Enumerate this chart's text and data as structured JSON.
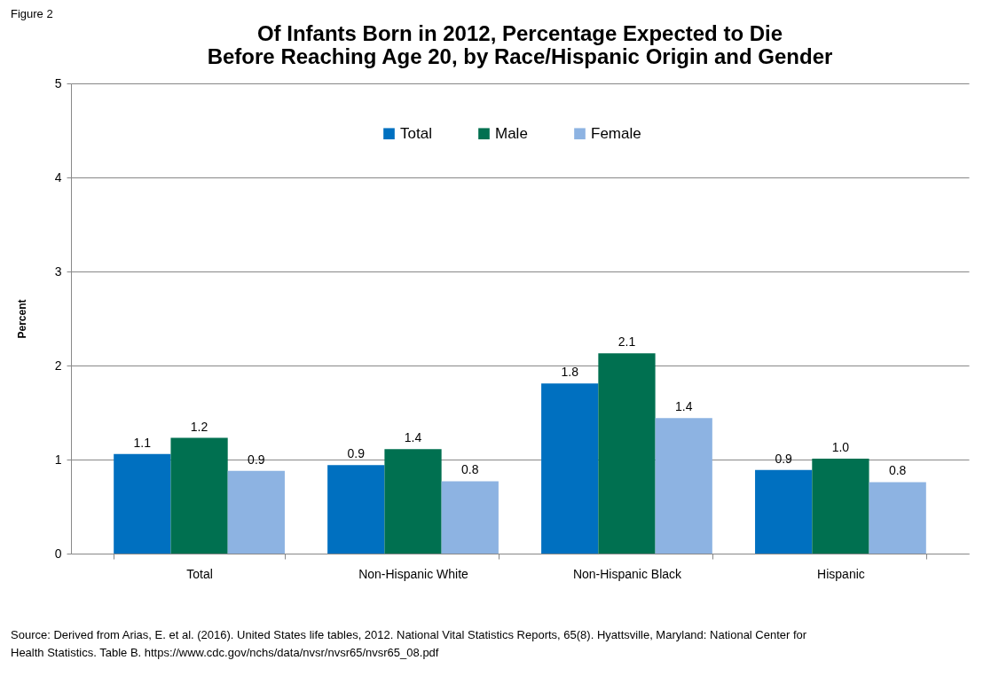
{
  "chart_data": {
    "type": "bar",
    "title": [
      "Of Infants Born in 2012, Percentage Expected to Die",
      "Before Reaching Age 20, by Race/Hispanic Origin and Gender"
    ],
    "ylabel": "Percent",
    "categories": [
      "Total",
      "Non-Hispanic White",
      "Non-Hispanic Black",
      "Hispanic"
    ],
    "series": [
      {
        "name": "Total",
        "color": "#0070c0",
        "values": [
          1.06,
          0.94,
          1.81,
          0.89
        ],
        "value_labels": [
          "1.1",
          "0.9",
          "1.8",
          "0.9"
        ]
      },
      {
        "name": "Male",
        "color": "#007050",
        "values": [
          1.23,
          1.11,
          2.13,
          1.01
        ],
        "value_labels": [
          "1.2",
          null,
          "2.1",
          "1.0"
        ]
      },
      {
        "name": "Female",
        "color": "#8db3e2",
        "values": [
          0.88,
          0.77,
          1.44,
          0.76
        ],
        "value_labels": [
          "0.9",
          "0.8",
          "1.4",
          "0.8"
        ]
      }
    ],
    "ylim": [
      0,
      5
    ],
    "yticks": [
      0,
      1,
      2,
      3,
      4,
      5
    ],
    "grid": "y",
    "legend": "top",
    "annotations": [
      {
        "text": "1.4",
        "x": "Non-Hispanic White",
        "y": 1.11
      },
      "Figure 2",
      "Source: Derived from Arias, E. et al. (2016). United States life tables, 2012. National Vital Statistics Reports, 65(8). Hyattsville, Maryland: National Center for Health Statistics. Table B.  https://www.cdc.gov/nchs/data/nvsr/nvsr65/nvsr65_08.pdf"
    ]
  }
}
